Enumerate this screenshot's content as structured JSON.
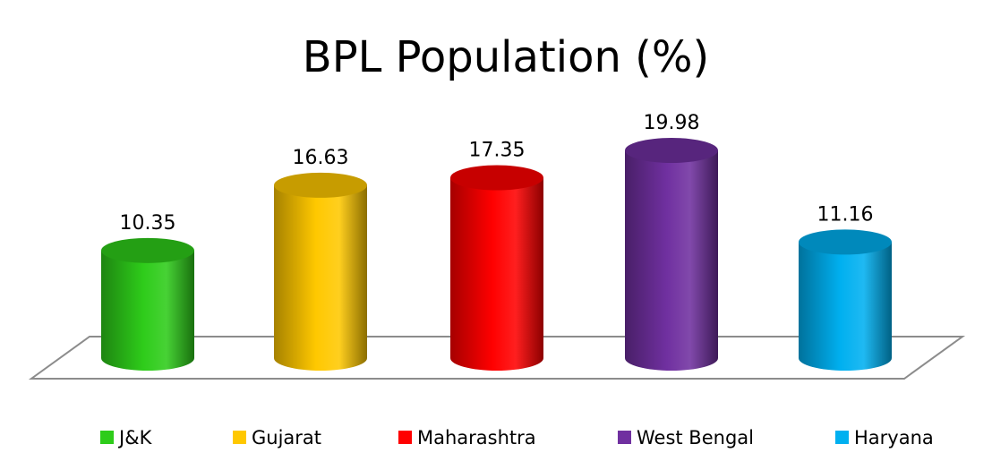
{
  "chart_data": {
    "type": "bar",
    "title": "BPL Population (%)",
    "categories": [
      "J&K",
      "Gujarat",
      "Maharashtra",
      "West Bengal",
      "Haryana"
    ],
    "series": [
      {
        "values": [
          10.35,
          16.63,
          17.35,
          19.98,
          11.16
        ]
      }
    ],
    "value_labels": [
      "10.35",
      "16.63",
      "17.35",
      "19.98",
      "11.16"
    ],
    "colors": [
      "#2ecc1a",
      "#ffc800",
      "#ff0000",
      "#7030a0",
      "#00b0f0"
    ],
    "legend_position": "bottom",
    "grid": false,
    "style": "3d-cylinder"
  }
}
